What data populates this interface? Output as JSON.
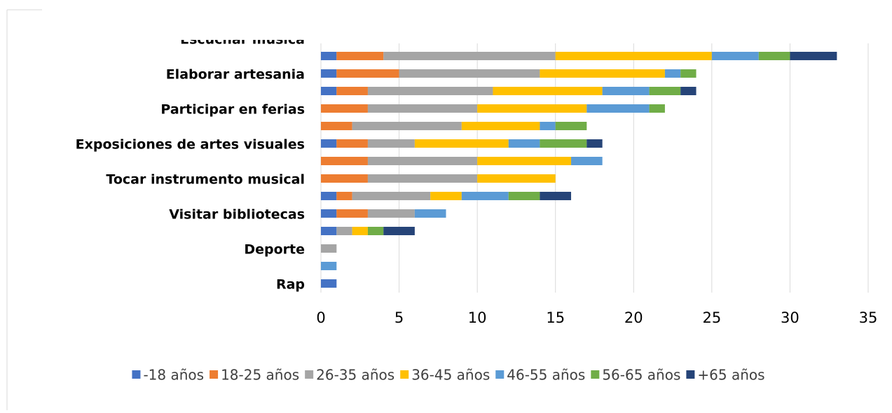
{
  "chart_data": {
    "type": "stacked_barh",
    "categories": [
      "Escuchar musica",
      null,
      "Elaborar artesania",
      null,
      "Participar en ferias",
      null,
      "Exposiciones de artes visuales",
      null,
      "Tocar instrumento musical",
      null,
      "Visitar bibliotecas",
      null,
      "Deporte",
      null,
      "Rap"
    ],
    "series": [
      {
        "name": "-18 años",
        "color": "#4472c4",
        "values": [
          null,
          1,
          1,
          1,
          0,
          0,
          1,
          0,
          0,
          1,
          1,
          1,
          0,
          0,
          1
        ]
      },
      {
        "name": "18-25 años",
        "color": "#ed7d31",
        "values": [
          null,
          3,
          4,
          2,
          3,
          2,
          2,
          3,
          3,
          1,
          2,
          0,
          0,
          0,
          0
        ]
      },
      {
        "name": "26-35 años",
        "color": "#a5a5a5",
        "values": [
          null,
          11,
          9,
          8,
          7,
          7,
          3,
          7,
          7,
          5,
          3,
          1,
          1,
          0,
          0
        ]
      },
      {
        "name": "36-45 años",
        "color": "#ffc000",
        "values": [
          null,
          10,
          8,
          7,
          7,
          5,
          6,
          6,
          5,
          2,
          0,
          1,
          0,
          0,
          0
        ]
      },
      {
        "name": "46-55 años",
        "color": "#5b9bd5",
        "values": [
          null,
          3,
          1,
          3,
          4,
          1,
          2,
          2,
          0,
          3,
          2,
          0,
          0,
          1,
          0
        ]
      },
      {
        "name": "56-65 años",
        "color": "#70ad47",
        "values": [
          null,
          2,
          1,
          2,
          1,
          2,
          3,
          0,
          0,
          2,
          0,
          1,
          0,
          0,
          0
        ]
      },
      {
        "name": "+65 años",
        "color": "#264478",
        "values": [
          null,
          3,
          0,
          1,
          0,
          0,
          1,
          0,
          0,
          2,
          0,
          2,
          0,
          0,
          0
        ]
      }
    ],
    "xlim": [
      0,
      35
    ],
    "xticks": [
      0,
      5,
      10,
      15,
      20,
      25,
      30,
      35
    ],
    "grid": true,
    "legend": "bottom"
  }
}
